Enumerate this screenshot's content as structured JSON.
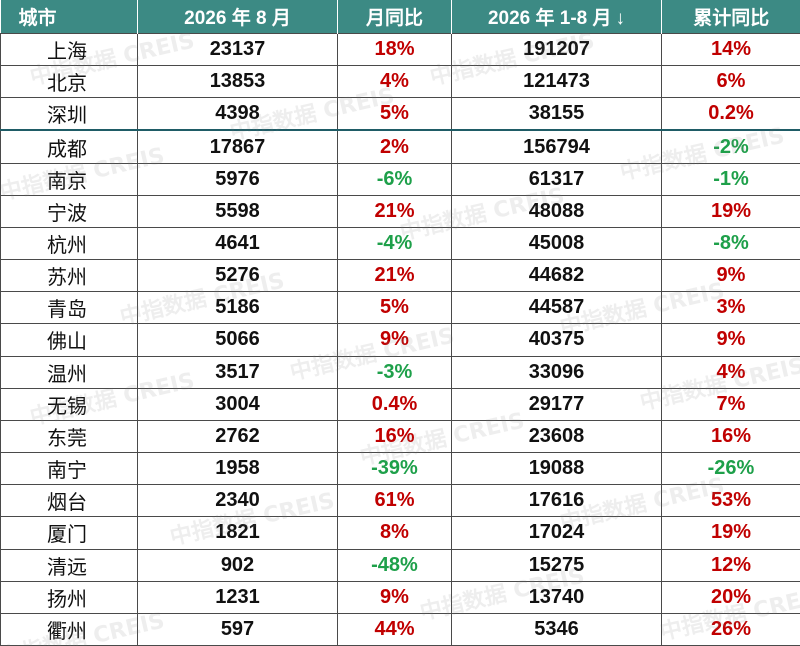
{
  "colors": {
    "header_bg": "#3c8a84",
    "header_text": "#ffffff",
    "increase": "#c00000",
    "decrease": "#1ea04a",
    "text": "#111111",
    "watermark": "#787878"
  },
  "header": {
    "city": "城市",
    "aug_volume": "2026 年 8 月",
    "aug_mom": "月同比",
    "ytd_volume": "2026 年 1-8 月",
    "ytd_sort_icon": "down-arrow",
    "ytd_sort_glyph": "↓",
    "ytd_yoy": "累计同比"
  },
  "rows": [
    {
      "city": "上海",
      "aug": "23137",
      "aug_yoy": "18%",
      "aug_trend": "up",
      "ytd": "191207",
      "ytd_yoy": "14%",
      "ytd_trend": "up"
    },
    {
      "city": "北京",
      "aug": "13853",
      "aug_yoy": "4%",
      "aug_trend": "up",
      "ytd": "121473",
      "ytd_yoy": "6%",
      "ytd_trend": "up"
    },
    {
      "city": "深圳",
      "aug": "4398",
      "aug_yoy": "5%",
      "aug_trend": "up",
      "ytd": "38155",
      "ytd_yoy": "0.2%",
      "ytd_trend": "up"
    },
    {
      "city": "成都",
      "aug": "17867",
      "aug_yoy": "2%",
      "aug_trend": "up",
      "ytd": "156794",
      "ytd_yoy": "-2%",
      "ytd_trend": "down"
    },
    {
      "city": "南京",
      "aug": "5976",
      "aug_yoy": "-6%",
      "aug_trend": "down",
      "ytd": "61317",
      "ytd_yoy": "-1%",
      "ytd_trend": "down"
    },
    {
      "city": "宁波",
      "aug": "5598",
      "aug_yoy": "21%",
      "aug_trend": "up",
      "ytd": "48088",
      "ytd_yoy": "19%",
      "ytd_trend": "up"
    },
    {
      "city": "杭州",
      "aug": "4641",
      "aug_yoy": "-4%",
      "aug_trend": "down",
      "ytd": "45008",
      "ytd_yoy": "-8%",
      "ytd_trend": "down"
    },
    {
      "city": "苏州",
      "aug": "5276",
      "aug_yoy": "21%",
      "aug_trend": "up",
      "ytd": "44682",
      "ytd_yoy": "9%",
      "ytd_trend": "up"
    },
    {
      "city": "青岛",
      "aug": "5186",
      "aug_yoy": "5%",
      "aug_trend": "up",
      "ytd": "44587",
      "ytd_yoy": "3%",
      "ytd_trend": "up"
    },
    {
      "city": "佛山",
      "aug": "5066",
      "aug_yoy": "9%",
      "aug_trend": "up",
      "ytd": "40375",
      "ytd_yoy": "9%",
      "ytd_trend": "up"
    },
    {
      "city": "温州",
      "aug": "3517",
      "aug_yoy": "-3%",
      "aug_trend": "down",
      "ytd": "33096",
      "ytd_yoy": "4%",
      "ytd_trend": "up"
    },
    {
      "city": "无锡",
      "aug": "3004",
      "aug_yoy": "0.4%",
      "aug_trend": "up",
      "ytd": "29177",
      "ytd_yoy": "7%",
      "ytd_trend": "up"
    },
    {
      "city": "东莞",
      "aug": "2762",
      "aug_yoy": "16%",
      "aug_trend": "up",
      "ytd": "23608",
      "ytd_yoy": "16%",
      "ytd_trend": "up"
    },
    {
      "city": "南宁",
      "aug": "1958",
      "aug_yoy": "-39%",
      "aug_trend": "down",
      "ytd": "19088",
      "ytd_yoy": "-26%",
      "ytd_trend": "down"
    },
    {
      "city": "烟台",
      "aug": "2340",
      "aug_yoy": "61%",
      "aug_trend": "up",
      "ytd": "17616",
      "ytd_yoy": "53%",
      "ytd_trend": "up"
    },
    {
      "city": "厦门",
      "aug": "1821",
      "aug_yoy": "8%",
      "aug_trend": "up",
      "ytd": "17024",
      "ytd_yoy": "19%",
      "ytd_trend": "up"
    },
    {
      "city": "清远",
      "aug": "902",
      "aug_yoy": "-48%",
      "aug_trend": "down",
      "ytd": "15275",
      "ytd_yoy": "12%",
      "ytd_trend": "up"
    },
    {
      "city": "扬州",
      "aug": "1231",
      "aug_yoy": "9%",
      "aug_trend": "up",
      "ytd": "13740",
      "ytd_yoy": "20%",
      "ytd_trend": "up"
    },
    {
      "city": "衢州",
      "aug": "597",
      "aug_yoy": "44%",
      "aug_trend": "up",
      "ytd": "5346",
      "ytd_yoy": "26%",
      "ytd_trend": "up"
    }
  ],
  "watermark": {
    "text": "中指数据 CREIS"
  }
}
